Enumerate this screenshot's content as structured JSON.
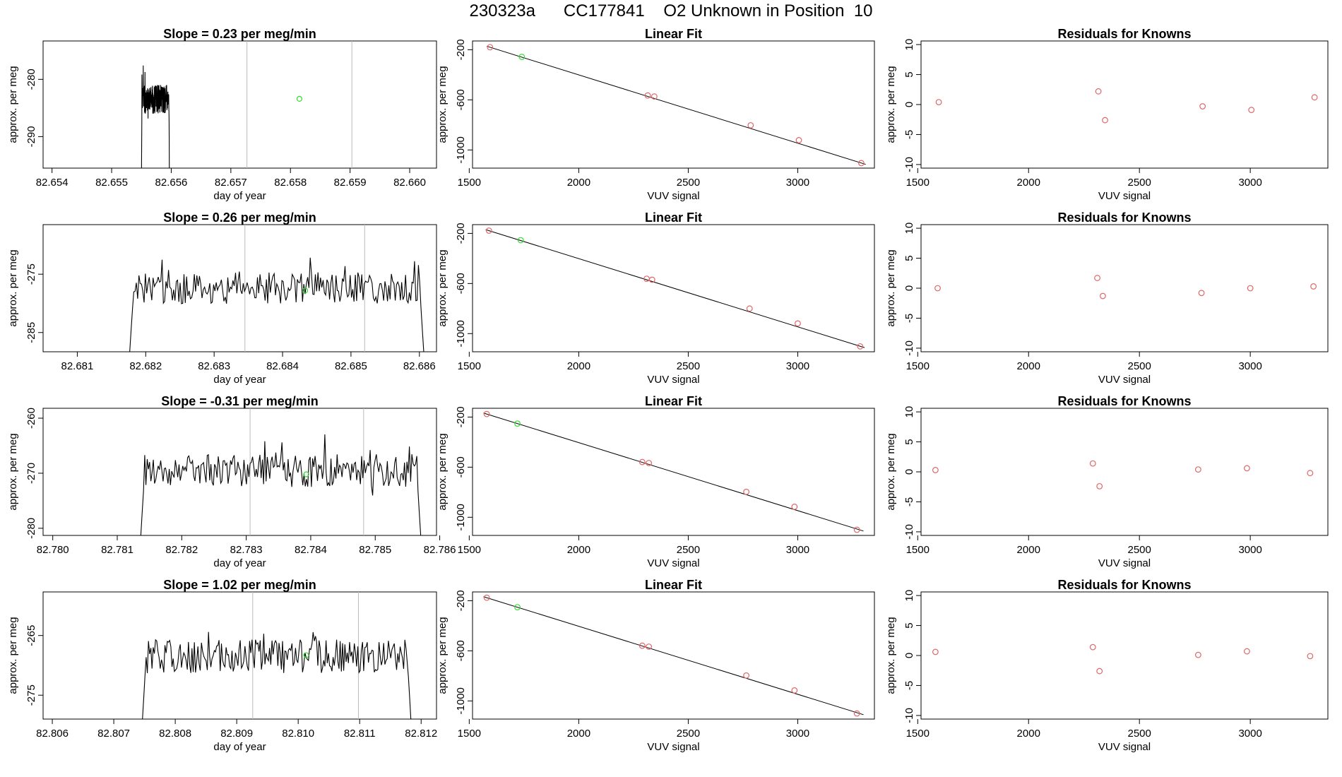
{
  "figure": {
    "title": "230323a      CC177841    O2 Unknown in Position  10",
    "colors": {
      "known": "#e06666",
      "unknown": "#33dd33",
      "line": "#000000",
      "vline": "#bbbbbb"
    }
  },
  "chart_data": [
    {
      "type": "line",
      "panel": "timeseries",
      "row": 1,
      "title": "Slope =  0.23  per meg/min",
      "xlabel": "day of year",
      "ylabel": "approx. per meg",
      "xlim": [
        82.65385,
        82.66045
      ],
      "ylim": [
        -295.5,
        -273.3
      ],
      "xticks": [
        82.654,
        82.655,
        82.656,
        82.657,
        82.658,
        82.659,
        82.66
      ],
      "xtick_labels": [
        "82.654",
        "82.655",
        "82.656",
        "82.657",
        "82.658",
        "82.659",
        "82.660"
      ],
      "yticks": [
        -290,
        -280
      ],
      "ytick_labels": [
        "-290",
        "-280"
      ],
      "series_start": 82.6555,
      "series_end": 82.65597,
      "series_base": -283.5,
      "series_amp": 2.6,
      "seed": 11,
      "vlines": [
        82.65727,
        82.65903
      ],
      "unknown_point": {
        "x": 82.65815,
        "y": -283.4
      }
    },
    {
      "type": "scatter",
      "panel": "linear_fit",
      "row": 1,
      "title": "Linear Fit",
      "xlabel": "VUV signal",
      "ylabel": "approx. per meg",
      "xlim": [
        1515,
        3350
      ],
      "ylim": [
        -1145,
        -130
      ],
      "xticks": [
        1500,
        2000,
        2500,
        3000
      ],
      "xtick_labels": [
        "1500",
        "2000",
        "2500",
        "3000"
      ],
      "yticks": [
        -1000,
        -600,
        -200
      ],
      "ytick_labels": [
        "-1000",
        "-600",
        "-200"
      ],
      "knowns": [
        [
          1595,
          -180
        ],
        [
          2315,
          -565
        ],
        [
          2345,
          -573
        ],
        [
          2785,
          -803
        ],
        [
          3005,
          -922
        ],
        [
          3290,
          -1105
        ]
      ],
      "unknown": [
        1740,
        -257
      ],
      "fit_line": [
        [
          1580,
          -172
        ],
        [
          3310,
          -1115
        ]
      ]
    },
    {
      "type": "scatter",
      "panel": "residuals",
      "row": 1,
      "title": "Residuals for Knowns",
      "xlabel": "VUV signal",
      "ylabel": "approx. per meg",
      "xlim": [
        1515,
        3350
      ],
      "ylim": [
        -10.6,
        10.6
      ],
      "xticks": [
        1500,
        2000,
        2500,
        3000
      ],
      "xtick_labels": [
        "1500",
        "2000",
        "2500",
        "3000"
      ],
      "yticks": [
        -10,
        -5,
        0,
        5,
        10
      ],
      "ytick_labels": [
        "-10",
        "-5",
        "0",
        "5",
        "10"
      ],
      "points": [
        [
          1595,
          0.4
        ],
        [
          2315,
          2.2
        ],
        [
          2345,
          -2.6
        ],
        [
          2785,
          -0.3
        ],
        [
          3005,
          -0.9
        ],
        [
          3290,
          1.2
        ]
      ]
    },
    {
      "type": "line",
      "panel": "timeseries",
      "row": 2,
      "title": "Slope =  0.26  per meg/min",
      "xlabel": "day of year",
      "ylabel": "approx. per meg",
      "xlim": [
        82.6805,
        82.68625
      ],
      "ylim": [
        -288.3,
        -266.5
      ],
      "xticks": [
        82.681,
        82.682,
        82.683,
        82.684,
        82.685,
        82.686
      ],
      "xtick_labels": [
        "82.681",
        "82.682",
        "82.683",
        "82.684",
        "82.685",
        "82.686"
      ],
      "yticks": [
        -285,
        -275
      ],
      "ytick_labels": [
        "-285",
        "-275"
      ],
      "series_start": 82.68175,
      "series_end": 82.68608,
      "series_base": -277.5,
      "series_amp": 2.6,
      "seed": 23,
      "vlines": [
        82.68345,
        82.6852
      ],
      "unknown_point": {
        "x": 82.68433,
        "y": -277.8
      }
    },
    {
      "type": "scatter",
      "panel": "linear_fit",
      "row": 2,
      "title": "Linear Fit",
      "xlabel": "VUV signal",
      "ylabel": "approx. per meg",
      "xlim": [
        1515,
        3350
      ],
      "ylim": [
        -1145,
        -130
      ],
      "xticks": [
        1500,
        2000,
        2500,
        3000
      ],
      "xtick_labels": [
        "1500",
        "2000",
        "2500",
        "3000"
      ],
      "yticks": [
        -1000,
        -600,
        -200
      ],
      "ytick_labels": [
        "-1000",
        "-600",
        "-200"
      ],
      "knowns": [
        [
          1590,
          -178
        ],
        [
          2310,
          -562
        ],
        [
          2335,
          -570
        ],
        [
          2780,
          -800
        ],
        [
          3000,
          -919
        ],
        [
          3285,
          -1102
        ]
      ],
      "unknown": [
        1735,
        -254
      ],
      "fit_line": [
        [
          1575,
          -170
        ],
        [
          3305,
          -1112
        ]
      ]
    },
    {
      "type": "scatter",
      "panel": "residuals",
      "row": 2,
      "title": "Residuals for Knowns",
      "xlabel": "VUV signal",
      "ylabel": "approx. per meg",
      "xlim": [
        1515,
        3350
      ],
      "ylim": [
        -10.6,
        10.6
      ],
      "xticks": [
        1500,
        2000,
        2500,
        3000
      ],
      "xtick_labels": [
        "1500",
        "2000",
        "2500",
        "3000"
      ],
      "yticks": [
        -10,
        -5,
        0,
        5,
        10
      ],
      "ytick_labels": [
        "-10",
        "-5",
        "0",
        "5",
        "10"
      ],
      "points": [
        [
          1590,
          0.0
        ],
        [
          2310,
          1.7
        ],
        [
          2335,
          -1.3
        ],
        [
          2780,
          -0.8
        ],
        [
          3000,
          0.0
        ],
        [
          3285,
          0.3
        ]
      ]
    },
    {
      "type": "line",
      "panel": "timeseries",
      "row": 3,
      "title": "Slope =  -0.31  per meg/min",
      "xlabel": "day of year",
      "ylabel": "approx. per meg",
      "xlim": [
        82.77985,
        82.78595
      ],
      "ylim": [
        -281.3,
        -258.2
      ],
      "xticks": [
        82.78,
        82.781,
        82.782,
        82.783,
        82.784,
        82.785,
        82.786
      ],
      "xtick_labels": [
        "82.780",
        "82.781",
        "82.782",
        "82.783",
        "82.784",
        "82.785",
        "82.786"
      ],
      "yticks": [
        -280,
        -270,
        -260
      ],
      "ytick_labels": [
        "-280",
        "-270",
        "-260"
      ],
      "series_start": 82.78135,
      "series_end": 82.78572,
      "series_base": -269.5,
      "series_amp": 3.0,
      "seed": 37,
      "vlines": [
        82.78306,
        82.78482
      ],
      "unknown_point": {
        "x": 82.78393,
        "y": -270.2
      }
    },
    {
      "type": "scatter",
      "panel": "linear_fit",
      "row": 3,
      "title": "Linear Fit",
      "xlabel": "VUV signal",
      "ylabel": "approx. per meg",
      "xlim": [
        1515,
        3350
      ],
      "ylim": [
        -1145,
        -130
      ],
      "xticks": [
        1500,
        2000,
        2500,
        3000
      ],
      "xtick_labels": [
        "1500",
        "2000",
        "2500",
        "3000"
      ],
      "yticks": [
        -1000,
        -600,
        -200
      ],
      "ytick_labels": [
        "-1000",
        "-600",
        "-200"
      ],
      "knowns": [
        [
          1580,
          -176
        ],
        [
          2290,
          -559
        ],
        [
          2320,
          -567
        ],
        [
          2765,
          -797
        ],
        [
          2985,
          -916
        ],
        [
          3270,
          -1100
        ]
      ],
      "unknown": [
        1720,
        -252
      ],
      "fit_line": [
        [
          1565,
          -168
        ],
        [
          3300,
          -1110
        ]
      ]
    },
    {
      "type": "scatter",
      "panel": "residuals",
      "row": 3,
      "title": "Residuals for Knowns",
      "xlabel": "VUV signal",
      "ylabel": "approx. per meg",
      "xlim": [
        1515,
        3350
      ],
      "ylim": [
        -10.6,
        10.6
      ],
      "xticks": [
        1500,
        2000,
        2500,
        3000
      ],
      "xtick_labels": [
        "1500",
        "2000",
        "2500",
        "3000"
      ],
      "yticks": [
        -10,
        -5,
        0,
        5,
        10
      ],
      "ytick_labels": [
        "-10",
        "-5",
        "0",
        "5",
        "10"
      ],
      "points": [
        [
          1580,
          0.3
        ],
        [
          2290,
          1.4
        ],
        [
          2320,
          -2.4
        ],
        [
          2765,
          0.4
        ],
        [
          2985,
          0.6
        ],
        [
          3270,
          -0.2
        ]
      ]
    },
    {
      "type": "line",
      "panel": "timeseries",
      "row": 4,
      "title": "Slope =  1.02  per meg/min",
      "xlabel": "day of year",
      "ylabel": "approx. per meg",
      "xlim": [
        82.80585,
        82.81225
      ],
      "ylim": [
        -279.0,
        -257.7
      ],
      "xticks": [
        82.806,
        82.807,
        82.808,
        82.809,
        82.81,
        82.811,
        82.812
      ],
      "xtick_labels": [
        "82.806",
        "82.807",
        "82.808",
        "82.809",
        "82.810",
        "82.811",
        "82.812"
      ],
      "yticks": [
        -275,
        -265
      ],
      "ytick_labels": [
        "-275",
        "-265"
      ],
      "series_start": 82.80745,
      "series_end": 82.81185,
      "series_base": -268.5,
      "series_amp": 2.8,
      "seed": 53,
      "vlines": [
        82.80926,
        82.81098
      ],
      "unknown_point": {
        "x": 82.81013,
        "y": -268.3
      }
    },
    {
      "type": "scatter",
      "panel": "linear_fit",
      "row": 4,
      "title": "Linear Fit",
      "xlabel": "VUV signal",
      "ylabel": "approx. per meg",
      "xlim": [
        1515,
        3350
      ],
      "ylim": [
        -1145,
        -130
      ],
      "xticks": [
        1500,
        2000,
        2500,
        3000
      ],
      "xtick_labels": [
        "1500",
        "2000",
        "2500",
        "3000"
      ],
      "yticks": [
        -1000,
        -600,
        -200
      ],
      "ytick_labels": [
        "-1000",
        "-600",
        "-200"
      ],
      "knowns": [
        [
          1580,
          -176
        ],
        [
          2290,
          -559
        ],
        [
          2320,
          -567
        ],
        [
          2765,
          -797
        ],
        [
          2985,
          -916
        ],
        [
          3270,
          -1100
        ]
      ],
      "unknown": [
        1720,
        -252
      ],
      "fit_line": [
        [
          1565,
          -168
        ],
        [
          3300,
          -1110
        ]
      ]
    },
    {
      "type": "scatter",
      "panel": "residuals",
      "row": 4,
      "title": "Residuals for Knowns",
      "xlabel": "VUV signal",
      "ylabel": "approx. per meg",
      "xlim": [
        1515,
        3350
      ],
      "ylim": [
        -10.6,
        10.6
      ],
      "xticks": [
        1500,
        2000,
        2500,
        3000
      ],
      "xtick_labels": [
        "1500",
        "2000",
        "2500",
        "3000"
      ],
      "yticks": [
        -10,
        -5,
        0,
        5,
        10
      ],
      "ytick_labels": [
        "-10",
        "-5",
        "0",
        "5",
        "10"
      ],
      "points": [
        [
          1580,
          0.6
        ],
        [
          2290,
          1.4
        ],
        [
          2320,
          -2.6
        ],
        [
          2765,
          0.1
        ],
        [
          2985,
          0.7
        ],
        [
          3270,
          -0.1
        ]
      ]
    }
  ]
}
